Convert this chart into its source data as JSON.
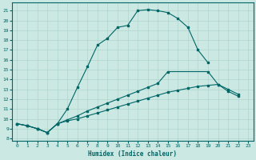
{
  "xlabel": "Humidex (Indice chaleur)",
  "background_color": "#cbe8e3",
  "grid_color": "#b0d4ce",
  "line_color": "#006666",
  "xlim": [
    -0.5,
    23.5
  ],
  "ylim": [
    7.8,
    21.8
  ],
  "xticks": [
    0,
    1,
    2,
    3,
    4,
    5,
    6,
    7,
    8,
    9,
    10,
    11,
    12,
    13,
    14,
    15,
    16,
    17,
    18,
    19,
    20,
    21,
    22,
    23
  ],
  "yticks": [
    8,
    9,
    10,
    11,
    12,
    13,
    14,
    15,
    16,
    17,
    18,
    19,
    20,
    21
  ],
  "line1_x": [
    0,
    1,
    2,
    3,
    4,
    5,
    6,
    7,
    8,
    9,
    10,
    11,
    12,
    13,
    14,
    15,
    16,
    17,
    18,
    19
  ],
  "line1_y": [
    9.5,
    9.3,
    9.0,
    8.6,
    9.5,
    11.0,
    13.2,
    15.3,
    17.5,
    18.2,
    19.3,
    19.5,
    21.0,
    21.1,
    21.0,
    20.8,
    20.2,
    19.3,
    17.0,
    15.7
  ],
  "line2_x": [
    0,
    1,
    2,
    3,
    4,
    5,
    6,
    7,
    8,
    9,
    10,
    11,
    12,
    13,
    14,
    15,
    19,
    20,
    21,
    22
  ],
  "line2_y": [
    9.5,
    9.3,
    9.0,
    8.6,
    9.5,
    9.9,
    10.3,
    10.8,
    11.2,
    11.6,
    12.0,
    12.4,
    12.8,
    13.2,
    13.6,
    14.8,
    14.8,
    13.5,
    13.0,
    12.5
  ],
  "line3_x": [
    0,
    1,
    2,
    3,
    4,
    5,
    6,
    7,
    8,
    9,
    10,
    11,
    12,
    13,
    14,
    15,
    16,
    17,
    18,
    19,
    20,
    21,
    22
  ],
  "line3_y": [
    9.5,
    9.3,
    9.0,
    8.6,
    9.5,
    9.8,
    10.0,
    10.3,
    10.6,
    10.9,
    11.2,
    11.5,
    11.8,
    12.1,
    12.4,
    12.7,
    12.9,
    13.1,
    13.3,
    13.4,
    13.5,
    12.8,
    12.3
  ]
}
